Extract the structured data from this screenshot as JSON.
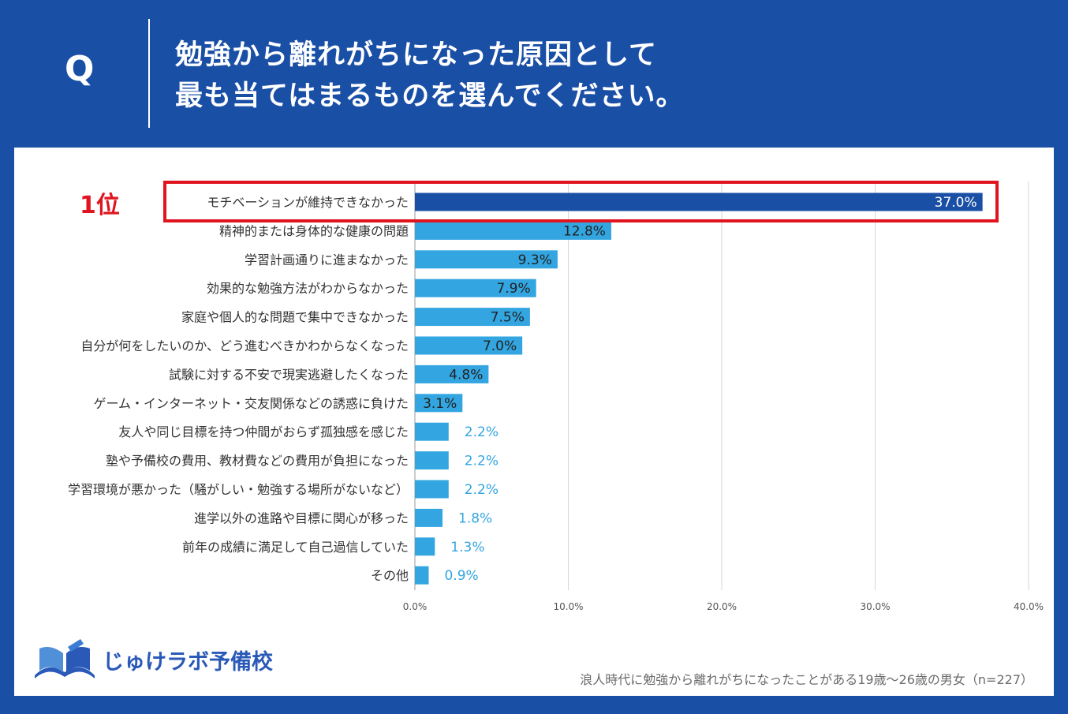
{
  "header": {
    "q_letter": "Q",
    "title_line1": "勉強から離れがちになった原因として",
    "title_line2": "最も当てはまるものを選んでください。"
  },
  "highlight": {
    "rank_label": "1位"
  },
  "colors": {
    "background": "#1a4fa6",
    "bar_top": "#1a4fa6",
    "bar": "#33a5e0",
    "highlight": "#e0141e",
    "label_inside": "#222222",
    "label_inside_top": "#ffffff",
    "label_outside": "#33a5e0"
  },
  "chart_data": {
    "type": "bar",
    "orientation": "horizontal",
    "categories": [
      "モチベーションが維持できなかった",
      "精神的または身体的な健康の問題",
      "学習計画通りに進まなかった",
      "効果的な勉強方法がわからなかった",
      "家庭や個人的な問題で集中できなかった",
      "自分が何をしたいのか、どう進むべきかわからなくなった",
      "試験に対する不安で現実逃避したくなった",
      "ゲーム・インターネット・交友関係などの誘惑に負けた",
      "友人や同じ目標を持つ仲間がおらず孤独感を感じた",
      "塾や予備校の費用、教材費などの費用が負担になった",
      "学習環境が悪かった（騒がしい・勉強する場所がないなど）",
      "進学以外の進路や目標に関心が移った",
      "前年の成績に満足して自己過信していた",
      "その他"
    ],
    "values": [
      37.0,
      12.8,
      9.3,
      7.9,
      7.5,
      7.0,
      4.8,
      3.1,
      2.2,
      2.2,
      2.2,
      1.8,
      1.3,
      0.9
    ],
    "value_labels": [
      "37.0%",
      "12.8%",
      "9.3%",
      "7.9%",
      "7.5%",
      "7.0%",
      "4.8%",
      "3.1%",
      "2.2%",
      "2.2%",
      "2.2%",
      "1.8%",
      "1.3%",
      "0.9%"
    ],
    "xlim": [
      0,
      40
    ],
    "xticks": [
      "0.0%",
      "10.0%",
      "20.0%",
      "30.0%",
      "40.0%"
    ],
    "grid": true
  },
  "footer": {
    "logo_text": "じゅけラボ予備校",
    "note": "浪人時代に勉強から離れがちになったことがある19歳～26歳の男女（n=227）"
  }
}
